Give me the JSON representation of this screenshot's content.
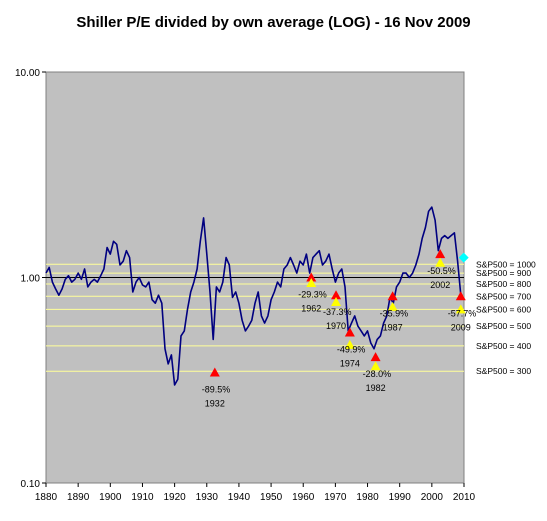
{
  "chart_data": {
    "type": "line",
    "title": "Shiller P/E divided by own average (LOG) - 16 Nov 2009",
    "xlabel": "",
    "ylabel": "",
    "y_scale": "log",
    "xlim": [
      1880,
      2010
    ],
    "ylim": [
      0.1,
      10
    ],
    "x_ticks": [
      "1880",
      "1890",
      "1900",
      "1910",
      "1920",
      "1930",
      "1940",
      "1950",
      "1960",
      "1970",
      "1980",
      "1990",
      "2000",
      "2010"
    ],
    "y_ticks": [
      {
        "value": 0.1,
        "label": "0.10"
      },
      {
        "value": 1,
        "label": "1.00"
      },
      {
        "value": 10,
        "label": "10.00"
      }
    ],
    "plot_background": "#c0c0c0",
    "line_color": "#000080",
    "level_line_color": "#ffff99",
    "series": [
      {
        "x": [
          1880,
          1881,
          1882,
          1883,
          1884,
          1885,
          1886,
          1887,
          1888,
          1889,
          1890,
          1891,
          1892,
          1893,
          1894,
          1895,
          1896,
          1897,
          1898,
          1899,
          1900,
          1901,
          1902,
          1903,
          1904,
          1905,
          1906,
          1907,
          1908,
          1909,
          1910,
          1911,
          1912,
          1913,
          1914,
          1915,
          1916,
          1917,
          1918,
          1919,
          1920,
          1921,
          1922,
          1923,
          1924,
          1925,
          1926,
          1927,
          1928,
          1929,
          1930,
          1931,
          1932,
          1933,
          1934,
          1935,
          1936,
          1937,
          1938,
          1939,
          1940,
          1941,
          1942,
          1943,
          1944,
          1945,
          1946,
          1947,
          1948,
          1949,
          1950,
          1951,
          1952,
          1953,
          1954,
          1955,
          1956,
          1957,
          1958,
          1959,
          1960,
          1961,
          1962,
          1963,
          1964,
          1965,
          1966,
          1967,
          1968,
          1969,
          1970,
          1971,
          1972,
          1973,
          1974,
          1975,
          1976,
          1977,
          1978,
          1979,
          1980,
          1981,
          1982,
          1983,
          1984,
          1985,
          1986,
          1987,
          1988,
          1989,
          1990,
          1991,
          1992,
          1993,
          1994,
          1995,
          1996,
          1997,
          1998,
          1999,
          2000,
          2001,
          2002,
          2003,
          2004,
          2005,
          2006,
          2007,
          2008,
          2009
        ],
        "values": [
          1.05,
          1.12,
          0.95,
          0.88,
          0.82,
          0.88,
          0.98,
          1.02,
          0.95,
          0.98,
          1.05,
          0.98,
          1.1,
          0.9,
          0.95,
          0.98,
          0.95,
          1.02,
          1.1,
          1.4,
          1.3,
          1.5,
          1.45,
          1.15,
          1.2,
          1.35,
          1.25,
          0.85,
          0.95,
          1.0,
          0.92,
          0.9,
          0.95,
          0.78,
          0.75,
          0.82,
          0.75,
          0.45,
          0.38,
          0.42,
          0.3,
          0.32,
          0.52,
          0.55,
          0.7,
          0.85,
          0.95,
          1.1,
          1.5,
          1.95,
          1.3,
          0.85,
          0.5,
          0.9,
          0.85,
          0.95,
          1.25,
          1.15,
          0.8,
          0.85,
          0.75,
          0.62,
          0.55,
          0.58,
          0.62,
          0.75,
          0.85,
          0.65,
          0.6,
          0.65,
          0.78,
          0.85,
          0.95,
          0.9,
          1.1,
          1.15,
          1.25,
          1.15,
          1.05,
          1.2,
          1.15,
          1.3,
          1.05,
          1.25,
          1.3,
          1.35,
          1.15,
          1.2,
          1.3,
          1.1,
          0.95,
          1.05,
          1.1,
          0.9,
          0.55,
          0.6,
          0.65,
          0.58,
          0.55,
          0.52,
          0.55,
          0.48,
          0.45,
          0.5,
          0.52,
          0.6,
          0.65,
          0.8,
          0.75,
          0.9,
          0.95,
          1.05,
          1.05,
          1.0,
          1.05,
          1.15,
          1.3,
          1.55,
          1.75,
          2.1,
          2.2,
          1.9,
          1.35,
          1.55,
          1.6,
          1.55,
          1.6,
          1.65,
          1.2,
          0.82
        ]
      }
    ],
    "levels": [
      {
        "value": 1.16,
        "label": "S&P500 = 1000"
      },
      {
        "value": 1.05,
        "label": "S&P500 = 900"
      },
      {
        "value": 0.93,
        "label": "S&P500 = 800"
      },
      {
        "value": 0.81,
        "label": "S&P500 = 700"
      },
      {
        "value": 0.7,
        "label": "S&P500 = 600"
      },
      {
        "value": 0.58,
        "label": "S&P500 = 500"
      },
      {
        "value": 0.465,
        "label": "S&P500 = 400"
      },
      {
        "value": 0.35,
        "label": "S&P500 = 300"
      }
    ],
    "markers": [
      {
        "x": 1932.5,
        "y": 0.345,
        "color": "#ff0000",
        "label": "-89.5%",
        "sublabel": "1932"
      },
      {
        "x": 1962.5,
        "y": 1.0,
        "color": "#ff0000",
        "label": "-29.3%",
        "sublabel": "1962"
      },
      {
        "x": 1962.5,
        "y": 0.94,
        "color": "#ffff00"
      },
      {
        "x": 1970.2,
        "y": 0.82,
        "color": "#ff0000",
        "label": "-37.3%",
        "sublabel": "1970"
      },
      {
        "x": 1970.2,
        "y": 0.76,
        "color": "#ffff00"
      },
      {
        "x": 1974.5,
        "y": 0.54,
        "color": "#ff0000",
        "label": "-49.9%",
        "sublabel": "1974"
      },
      {
        "x": 1974.5,
        "y": 0.47,
        "color": "#ffff00"
      },
      {
        "x": 1982.5,
        "y": 0.41,
        "color": "#ff0000",
        "label": "-28.0%",
        "sublabel": "1982"
      },
      {
        "x": 1982.5,
        "y": 0.37,
        "color": "#ffff00"
      },
      {
        "x": 1987.8,
        "y": 0.81,
        "color": "#ff0000",
        "label": "-35.9%",
        "sublabel": "1987"
      },
      {
        "x": 1987.8,
        "y": 0.72,
        "color": "#ffff00"
      },
      {
        "x": 2002.6,
        "y": 1.3,
        "color": "#ff0000",
        "label": "-50.5%",
        "sublabel": "2002"
      },
      {
        "x": 2002.6,
        "y": 1.18,
        "color": "#ffff00"
      },
      {
        "x": 2009.0,
        "y": 0.81,
        "color": "#ff0000",
        "label": "-57.7%",
        "sublabel": "2009"
      },
      {
        "x": 2009.0,
        "y": 0.7,
        "color": "#ffff00"
      }
    ],
    "current_point": {
      "x": 2009.9,
      "y": 1.25,
      "color": "#00ffff"
    }
  }
}
